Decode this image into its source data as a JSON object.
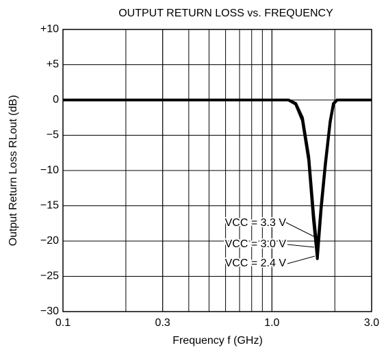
{
  "chart_data": {
    "type": "line",
    "title": "OUTPUT RETURN LOSS vs. FREQUENCY",
    "xlabel": "Frequency  f  (GHz)",
    "ylabel": "Output Return Loss  RLout  (dB)",
    "x": [
      0.1,
      0.5,
      1.0,
      1.2,
      1.3,
      1.4,
      1.5,
      1.58,
      1.65,
      1.72,
      1.8,
      1.9,
      1.97,
      2.05,
      2.5,
      3.0
    ],
    "series": [
      {
        "name": "VCC = 3.3 V",
        "color": "#000000",
        "values": [
          0,
          0,
          0,
          0,
          -0.5,
          -2.5,
          -8,
          -16,
          -21.5,
          -15,
          -9,
          -3,
          -0.5,
          0,
          0,
          0
        ]
      },
      {
        "name": "VCC = 3.0 V",
        "color": "#000000",
        "values": [
          0,
          0,
          0,
          0,
          -0.5,
          -2.7,
          -8.3,
          -16.5,
          -22,
          -15.3,
          -9.2,
          -3.1,
          -0.5,
          0,
          0,
          0
        ]
      },
      {
        "name": "VCC = 2.4 V",
        "color": "#000000",
        "values": [
          0,
          0,
          0,
          0,
          -0.6,
          -2.9,
          -8.6,
          -17,
          -22.5,
          -15.6,
          -9.4,
          -3.2,
          -0.6,
          0,
          0,
          0
        ]
      }
    ],
    "xscale": "log",
    "xlim": [
      0.1,
      3.0
    ],
    "xticks": [
      0.1,
      0.3,
      {
        "value": 1.0,
        "label": "1.0"
      },
      {
        "value": 3.0,
        "label": "3.0"
      }
    ],
    "ylim": [
      -30,
      10
    ],
    "yticks": [
      {
        "value": 10,
        "label": "+10"
      },
      {
        "value": 5,
        "label": "+5"
      },
      0,
      {
        "value": -5,
        "label": "−5"
      },
      {
        "value": -10,
        "label": "−10"
      },
      {
        "value": -15,
        "label": "−15"
      },
      {
        "value": -20,
        "label": "−20"
      },
      {
        "value": -25,
        "label": "−25"
      },
      {
        "value": -30,
        "label": "−30"
      }
    ],
    "grid": true
  }
}
